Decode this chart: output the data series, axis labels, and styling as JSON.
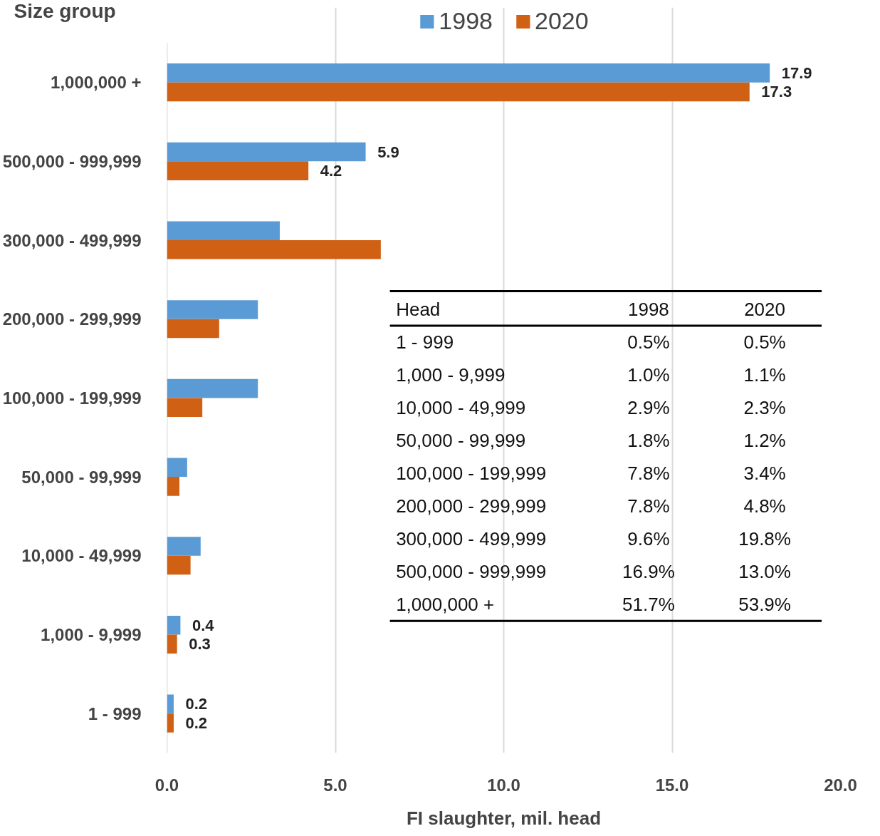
{
  "chart_data": {
    "type": "bar",
    "orientation": "horizontal",
    "categories": [
      "1,000,000 +",
      "500,000 - 999,999",
      "300,000 - 499,999",
      "200,000 - 299,999",
      "100,000 - 199,999",
      "50,000 - 99,999",
      "10,000 - 49,999",
      "1,000 - 9,999",
      "1 - 999"
    ],
    "series": [
      {
        "name": "1998",
        "color": "#5b9bd5",
        "values": [
          17.9,
          5.9,
          3.35,
          2.7,
          2.7,
          0.6,
          1.0,
          0.4,
          0.2
        ],
        "value_labels": [
          "17.9",
          "5.9",
          null,
          null,
          null,
          null,
          null,
          "0.4",
          "0.2"
        ]
      },
      {
        "name": "2020",
        "color": "#d06014",
        "values": [
          17.3,
          4.2,
          6.35,
          1.55,
          1.05,
          0.37,
          0.7,
          0.3,
          0.2
        ],
        "value_labels": [
          "17.3",
          "4.2",
          null,
          null,
          null,
          null,
          null,
          "0.3",
          "0.2"
        ]
      }
    ],
    "xlim": [
      0,
      20
    ],
    "xticks": [
      {
        "value": 0,
        "label": "0.0"
      },
      {
        "value": 5,
        "label": "5.0"
      },
      {
        "value": 10,
        "label": "10.0"
      },
      {
        "value": 15,
        "label": "15.0"
      },
      {
        "value": 20,
        "label": "20.0"
      }
    ],
    "xlabel": "FI slaughter, mil. head",
    "ylabel": "Size group",
    "grid": "x",
    "legend": "top",
    "annotations": [
      "Head",
      "1998",
      "2020",
      "1 - 999",
      "0.5%",
      "0.5%",
      "1,000 - 9,999",
      "1.0%",
      "1.1%",
      "10,000 - 49,999",
      "2.9%",
      "2.3%",
      "50,000 - 99,999",
      "1.8%",
      "1.2%",
      "100,000 - 199,999",
      "7.8%",
      "3.4%",
      "200,000 - 299,999",
      "7.8%",
      "4.8%",
      "300,000 - 499,999",
      "9.6%",
      "19.8%",
      "500,000 - 999,999",
      "16.9%",
      "13.0%",
      "1,000,000 +",
      "51.7%",
      "53.9%"
    ]
  }
}
